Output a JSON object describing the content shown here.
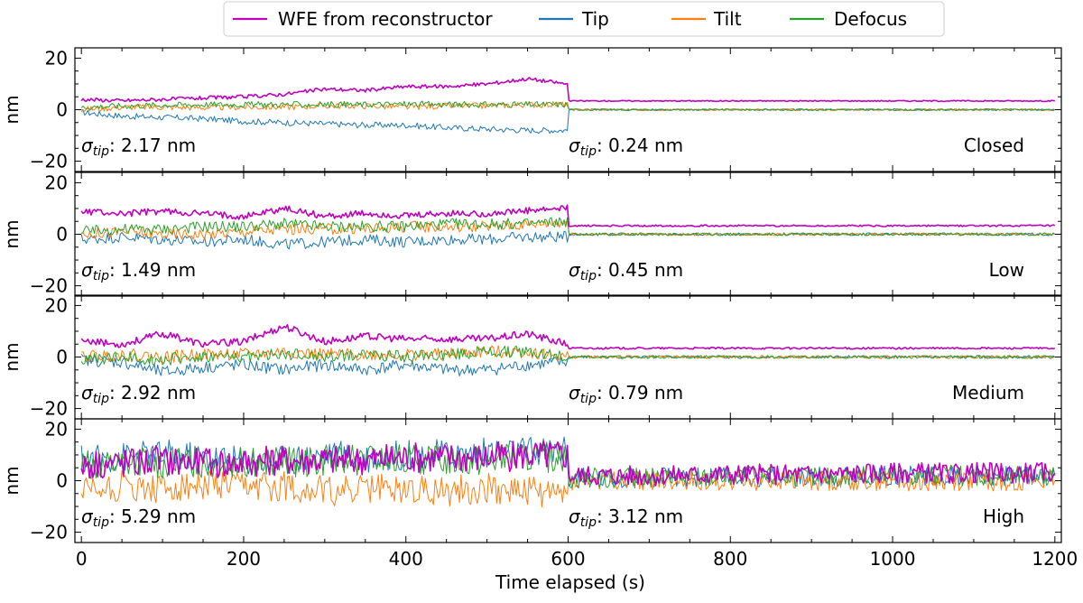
{
  "chart_data": {
    "type": "line",
    "xlabel": "Time elapsed (s)",
    "xlim": [
      -8,
      1208
    ],
    "x_ticks": [
      0,
      200,
      400,
      600,
      800,
      1000,
      1200
    ],
    "ylabel": "nm",
    "ylim": [
      -24,
      24
    ],
    "y_ticks": [
      -20,
      0,
      20
    ],
    "grid": false,
    "legend": {
      "placement": "top-center",
      "entries": [
        {
          "label": "WFE from reconstructor",
          "color": "#bf00bf"
        },
        {
          "label": "Tip",
          "color": "#1f77b4"
        },
        {
          "label": "Tilt",
          "color": "#ff7f0e"
        },
        {
          "label": "Defocus",
          "color": "#2ca02c"
        }
      ]
    },
    "panels": [
      {
        "label": "Closed",
        "sigma_left": "2.17 nm",
        "sigma_right": "0.24 nm",
        "x": [
          0,
          50,
          100,
          150,
          200,
          250,
          300,
          350,
          400,
          450,
          500,
          550,
          599,
          601,
          700,
          800,
          900,
          1000,
          1100,
          1200
        ],
        "series": [
          {
            "name": "WFE from reconstructor",
            "color": "#bf00bf",
            "values": [
              4,
              3.5,
              4,
              4.5,
              5,
              6,
              8,
              7.5,
              9,
              9,
              10,
              12,
              10,
              3.4,
              3.4,
              3.4,
              3.4,
              3.4,
              3.4,
              3.4
            ]
          },
          {
            "name": "Tip",
            "color": "#1f77b4",
            "values": [
              -1,
              -2.5,
              -3,
              -3.5,
              -4.5,
              -5,
              -5.5,
              -6,
              -6,
              -7,
              -7.5,
              -8,
              -8,
              0,
              0,
              0,
              0,
              0,
              0,
              0
            ]
          },
          {
            "name": "Tilt",
            "color": "#ff7f0e",
            "values": [
              0,
              1,
              1,
              0.8,
              1,
              1,
              1.5,
              1.5,
              1,
              1.5,
              1.5,
              2,
              2,
              0,
              0,
              0,
              0,
              0,
              0,
              0
            ]
          },
          {
            "name": "Defocus",
            "color": "#2ca02c",
            "values": [
              1,
              1.5,
              1.8,
              2,
              2,
              2,
              2,
              2,
              2.2,
              2,
              2,
              2,
              2,
              0,
              0,
              0,
              0,
              0,
              0,
              0
            ]
          }
        ]
      },
      {
        "label": "Low",
        "sigma_left": "1.49 nm",
        "sigma_right": "0.45 nm",
        "x": [
          0,
          50,
          100,
          150,
          200,
          250,
          300,
          350,
          400,
          450,
          500,
          550,
          599,
          601,
          700,
          800,
          900,
          1000,
          1100,
          1200
        ],
        "series": [
          {
            "name": "WFE from reconstructor",
            "color": "#bf00bf",
            "values": [
              9,
              8,
              9,
              8,
              7,
              10,
              7,
              8,
              7,
              8,
              8,
              9,
              10,
              3.3,
              3.3,
              3.3,
              3.3,
              3.3,
              3.3,
              3.3
            ]
          },
          {
            "name": "Tip",
            "color": "#1f77b4",
            "values": [
              -2,
              -1,
              -2,
              -3,
              -2,
              -4,
              -3,
              -2,
              -3,
              -2,
              -2,
              -1,
              -1,
              0,
              0,
              0,
              0,
              0,
              0,
              0
            ]
          },
          {
            "name": "Tilt",
            "color": "#ff7f0e",
            "values": [
              0,
              1,
              0,
              0,
              1,
              2,
              2,
              2,
              3,
              3,
              3,
              4,
              5,
              0,
              0,
              0,
              0,
              0,
              0,
              0
            ]
          },
          {
            "name": "Defocus",
            "color": "#2ca02c",
            "values": [
              1,
              2,
              2,
              3,
              3,
              4,
              3,
              3,
              3,
              4,
              4,
              4,
              5,
              0,
              0,
              0,
              0,
              0,
              0,
              0
            ]
          }
        ]
      },
      {
        "label": "Medium",
        "sigma_left": "2.92 nm",
        "sigma_right": "0.79 nm",
        "x": [
          0,
          50,
          100,
          150,
          200,
          250,
          300,
          350,
          400,
          450,
          500,
          550,
          599,
          601,
          700,
          800,
          900,
          1000,
          1100,
          1200
        ],
        "series": [
          {
            "name": "WFE from reconstructor",
            "color": "#bf00bf",
            "values": [
              6,
              5,
              9,
              5,
              6,
              12,
              6,
              8,
              7,
              7,
              7,
              9,
              5,
              3.4,
              3.4,
              3.4,
              3.4,
              3.4,
              3.4,
              3.4
            ]
          },
          {
            "name": "Tip",
            "color": "#1f77b4",
            "values": [
              -1,
              -2,
              -6,
              -4,
              -3,
              -5,
              -3,
              -5,
              -3,
              -5,
              -5,
              -3,
              -2,
              0,
              0,
              0,
              0,
              0,
              0,
              0
            ]
          },
          {
            "name": "Tilt",
            "color": "#ff7f0e",
            "values": [
              0,
              1,
              0,
              1,
              1,
              2,
              1,
              1,
              1,
              1,
              2,
              2,
              0,
              0,
              0,
              0,
              0,
              0,
              0,
              0
            ]
          },
          {
            "name": "Defocus",
            "color": "#2ca02c",
            "values": [
              -1,
              0,
              -1,
              0,
              0,
              1,
              0,
              1,
              0,
              1,
              2,
              2,
              0,
              0,
              0,
              0,
              0,
              0,
              0,
              0
            ]
          }
        ]
      },
      {
        "label": "High",
        "sigma_left": "5.29 nm",
        "sigma_right": "3.12 nm",
        "x": [
          0,
          50,
          100,
          150,
          200,
          250,
          300,
          350,
          400,
          450,
          500,
          550,
          599,
          601,
          700,
          800,
          900,
          1000,
          1100,
          1200
        ],
        "series": [
          {
            "name": "WFE from reconstructor",
            "color": "#bf00bf",
            "values": [
              7,
              7,
              8,
              7,
              7,
              8,
              8,
              8,
              9,
              9,
              9,
              10,
              10,
              2,
              2,
              2.5,
              2.5,
              3,
              3,
              3
            ]
          },
          {
            "name": "Tip",
            "color": "#1f77b4",
            "values": [
              8,
              9,
              10,
              9,
              8,
              8,
              10,
              9,
              10,
              10,
              11,
              11,
              12,
              1,
              1,
              1.5,
              1.5,
              2,
              2,
              2
            ]
          },
          {
            "name": "Tilt",
            "color": "#ff7f0e",
            "values": [
              -3,
              -2,
              -3,
              -2,
              -3,
              -2,
              -4,
              -3,
              -3,
              -4,
              -3,
              -4,
              -5,
              0,
              0,
              0,
              0,
              0,
              0,
              0
            ]
          },
          {
            "name": "Defocus",
            "color": "#2ca02c",
            "values": [
              6,
              7,
              7,
              7,
              7,
              7,
              8,
              8,
              8,
              8,
              8,
              9,
              9,
              1,
              1,
              1.5,
              1.5,
              2,
              2,
              2
            ]
          }
        ]
      }
    ]
  }
}
